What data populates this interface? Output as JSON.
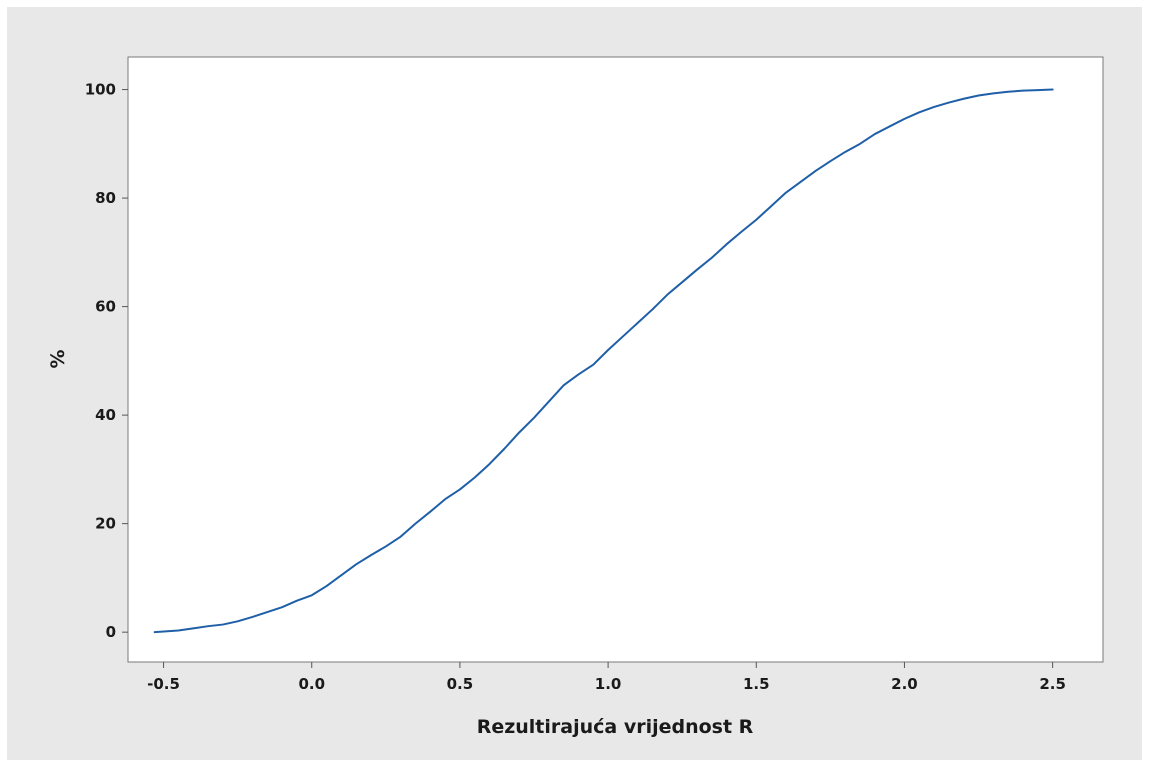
{
  "chart_data": {
    "type": "line",
    "title": "",
    "xlabel": "Rezultirajuća vrijednost R",
    "ylabel": "%",
    "xlim": [
      -0.62,
      2.67
    ],
    "ylim": [
      -5.5,
      106
    ],
    "grid": false,
    "x_ticks": [
      "-0.5",
      "0.0",
      "0.5",
      "1.0",
      "1.5",
      "2.0",
      "2.5"
    ],
    "y_ticks": [
      "0",
      "20",
      "40",
      "60",
      "80",
      "100"
    ],
    "series": [
      {
        "color": "#1f5fa8",
        "x": [
          -0.53,
          -0.45,
          -0.4,
          -0.35,
          -0.3,
          -0.25,
          -0.2,
          -0.15,
          -0.1,
          -0.05,
          0.0,
          0.05,
          0.1,
          0.15,
          0.2,
          0.25,
          0.3,
          0.35,
          0.4,
          0.45,
          0.5,
          0.55,
          0.6,
          0.65,
          0.7,
          0.75,
          0.8,
          0.85,
          0.9,
          0.95,
          1.0,
          1.05,
          1.1,
          1.15,
          1.2,
          1.25,
          1.3,
          1.35,
          1.4,
          1.45,
          1.5,
          1.55,
          1.6,
          1.65,
          1.7,
          1.75,
          1.8,
          1.85,
          1.9,
          1.95,
          2.0,
          2.05,
          2.1,
          2.15,
          2.2,
          2.25,
          2.3,
          2.35,
          2.4,
          2.45,
          2.5
        ],
        "y": [
          0,
          0.3,
          0.7,
          1.1,
          1.4,
          2,
          2.8,
          3.7,
          4.6,
          5.8,
          6.8,
          8.5,
          10.5,
          12.5,
          14.2,
          15.8,
          17.6,
          20,
          22.2,
          24.5,
          26.3,
          28.5,
          31,
          33.8,
          36.8,
          39.5,
          42.5,
          45.5,
          47.5,
          49.3,
          52,
          54.5,
          57,
          59.5,
          62.2,
          64.5,
          66.8,
          69,
          71.5,
          73.8,
          76,
          78.5,
          81,
          83,
          85,
          86.8,
          88.5,
          90,
          91.8,
          93.2,
          94.6,
          95.8,
          96.8,
          97.6,
          98.3,
          98.9,
          99.3,
          99.6,
          99.8,
          99.9,
          100
        ]
      }
    ]
  }
}
